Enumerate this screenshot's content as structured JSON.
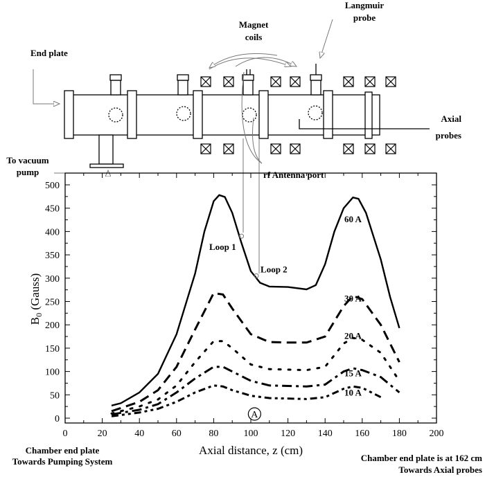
{
  "diagram": {
    "end_plate": "End plate",
    "magnet_coils": [
      "Magnet",
      "coils"
    ],
    "langmuir_probe": [
      "Langmuir",
      "probe"
    ],
    "axial_probes": [
      "Axial",
      "probes"
    ],
    "rf_antenna_port": "rf Antenna port",
    "vacuum_pump": [
      "To vacuum",
      "pump"
    ]
  },
  "chart_data": {
    "type": "line",
    "xlabel": "Axial distance, z (cm)",
    "ylabel": "B",
    "ylabel_sub": "0",
    "ylabel_unit": " (Gauss)",
    "xlim": [
      0,
      200
    ],
    "ylim": [
      0,
      500
    ],
    "xticks": [
      0,
      20,
      40,
      60,
      80,
      100,
      120,
      140,
      160,
      180,
      200
    ],
    "yticks": [
      0,
      50,
      100,
      150,
      200,
      250,
      300,
      350,
      400,
      450,
      500
    ],
    "grid": false,
    "series": [
      {
        "name": "60 A",
        "style": "solid",
        "x": [
          25,
          30,
          40,
          50,
          60,
          70,
          75,
          80,
          83,
          86,
          90,
          95,
          100,
          105,
          110,
          120,
          130,
          135,
          140,
          145,
          150,
          155,
          158,
          162,
          170,
          175,
          180
        ],
        "y": [
          27,
          32,
          55,
          95,
          180,
          310,
          400,
          465,
          478,
          474,
          440,
          375,
          315,
          290,
          282,
          281,
          276,
          285,
          330,
          400,
          450,
          473,
          470,
          440,
          340,
          260,
          193
        ]
      },
      {
        "name": "30 A",
        "style": "dash",
        "x": [
          25,
          40,
          50,
          60,
          70,
          80,
          85,
          90,
          100,
          110,
          120,
          130,
          140,
          150,
          155,
          160,
          170,
          180
        ],
        "y": [
          15,
          35,
          60,
          110,
          190,
          268,
          265,
          235,
          180,
          163,
          162,
          162,
          175,
          240,
          262,
          255,
          200,
          120
        ]
      },
      {
        "name": "20 A",
        "style": "dot",
        "x": [
          25,
          40,
          50,
          60,
          70,
          80,
          85,
          90,
          100,
          110,
          130,
          140,
          150,
          155,
          160,
          170,
          180
        ],
        "y": [
          10,
          25,
          40,
          70,
          120,
          165,
          165,
          150,
          115,
          105,
          103,
          110,
          160,
          172,
          168,
          140,
          80
        ]
      },
      {
        "name": "15 A",
        "style": "dashdot",
        "x": [
          25,
          40,
          50,
          60,
          70,
          80,
          85,
          90,
          100,
          110,
          130,
          140,
          150,
          155,
          160,
          170,
          180
        ],
        "y": [
          8,
          18,
          30,
          55,
          85,
          110,
          110,
          100,
          80,
          70,
          68,
          72,
          100,
          107,
          103,
          88,
          55
        ]
      },
      {
        "name": "10 A",
        "style": "dashdotdot",
        "x": [
          25,
          40,
          50,
          60,
          70,
          80,
          85,
          90,
          100,
          110,
          130,
          140,
          150,
          155,
          160,
          170
        ],
        "y": [
          4,
          12,
          20,
          35,
          55,
          70,
          68,
          60,
          48,
          43,
          41,
          45,
          63,
          68,
          65,
          45
        ]
      }
    ],
    "annotations": [
      {
        "text": "Loop 1",
        "x": 95,
        "y": 390
      },
      {
        "text": "Loop 2",
        "x": 103,
        "y": 305
      },
      {
        "text": "A",
        "x": 102,
        "y": 0
      }
    ],
    "footnotes": {
      "left": [
        "Chamber end plate",
        "Towards Pumping System"
      ],
      "right": [
        "Chamber end plate is at 162 cm",
        "Towards Axial probes"
      ]
    }
  }
}
